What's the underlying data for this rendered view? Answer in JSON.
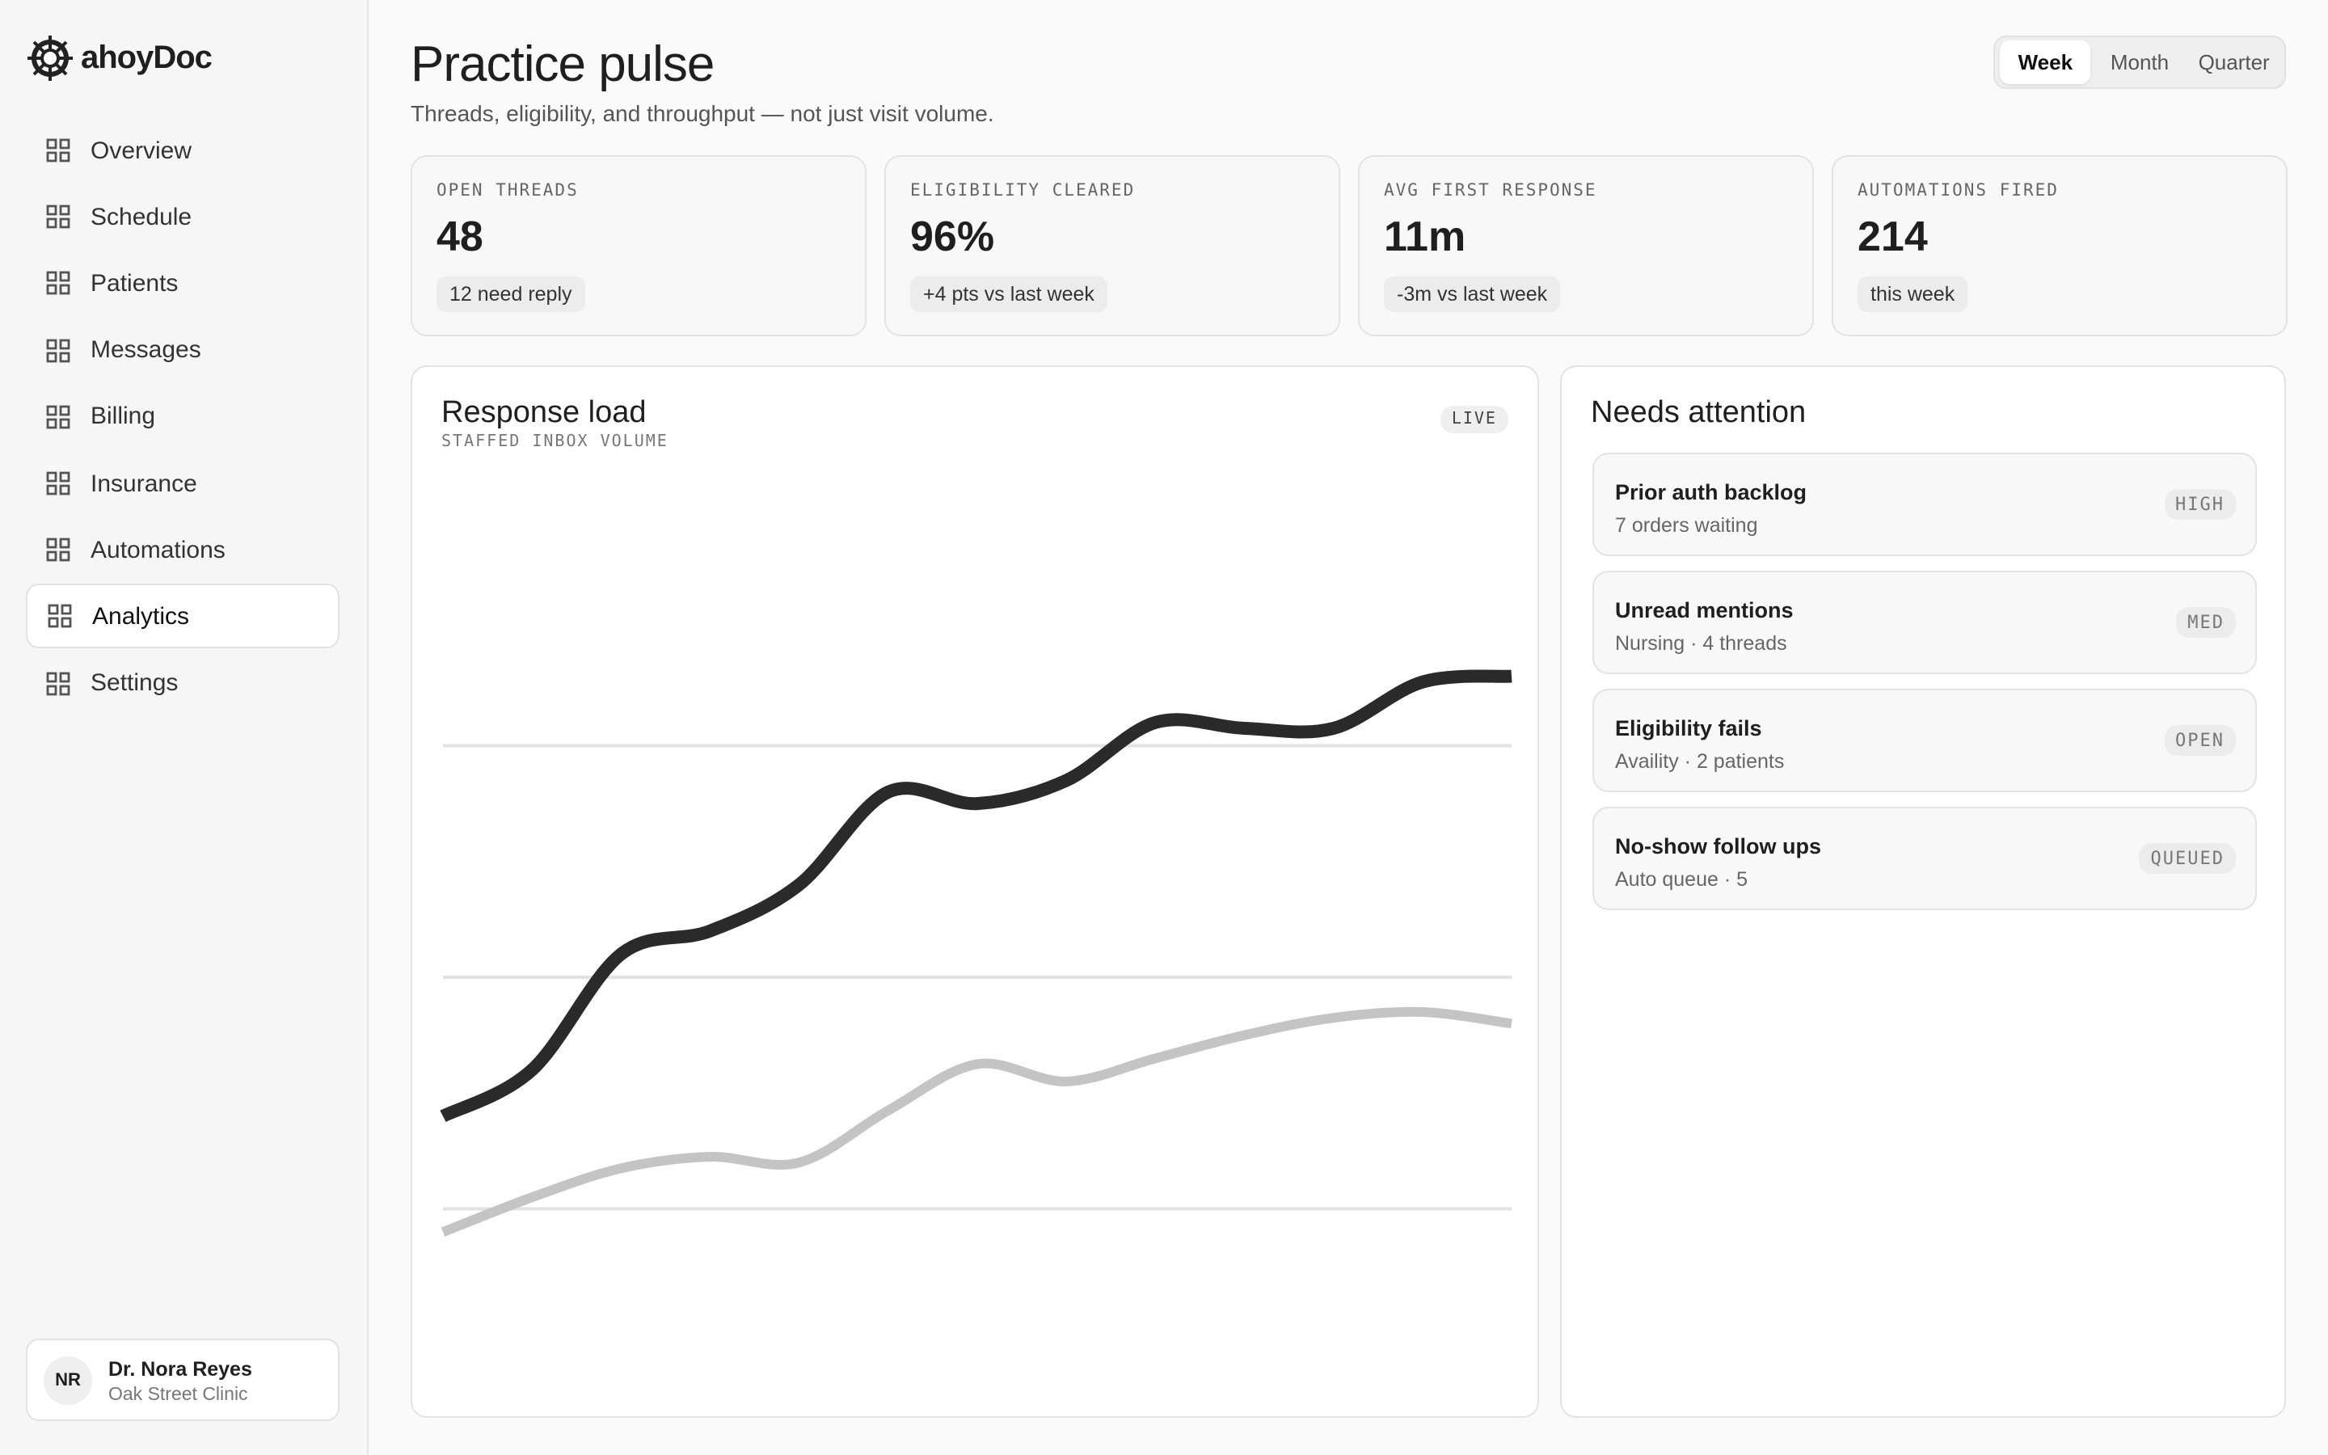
{
  "sidebar": {
    "brand": "ahoyDoc",
    "nav": [
      "Overview",
      "Schedule",
      "Patients",
      "Messages",
      "Billing",
      "Insurance",
      "Automations",
      "Analytics",
      "Settings"
    ],
    "active": 7,
    "user": {
      "initials": "NR",
      "name": "Dr. Nora Reyes",
      "org": "Oak Street Clinic"
    }
  },
  "header": {
    "title": "Practice pulse",
    "subtitle": "Threads, eligibility, and throughput — not just visit volume.",
    "ranges": [
      "Week",
      "Month",
      "Quarter"
    ],
    "active_range": 0
  },
  "kpis": [
    {
      "label": "OPEN THREADS",
      "value": "48",
      "note": "12 need reply"
    },
    {
      "label": "ELIGIBILITY CLEARED",
      "value": "96%",
      "note": "+4 pts vs last week"
    },
    {
      "label": "AVG FIRST RESPONSE",
      "value": "11m",
      "note": "-3m vs last week"
    },
    {
      "label": "AUTOMATIONS FIRED",
      "value": "214",
      "note": "this week"
    }
  ],
  "chart_data": {
    "type": "line",
    "title": "Response load",
    "subtitle": "STAFFED INBOX VOLUME",
    "badge": "LIVE",
    "x": [
      0,
      1,
      2,
      3,
      4,
      5,
      6,
      7,
      8,
      9,
      10,
      11,
      12
    ],
    "xlim": [
      0,
      12
    ],
    "ylim": [
      0,
      80
    ],
    "yticks": [
      20,
      40,
      60
    ],
    "grid": true,
    "series": [
      {
        "color": "#2a2a2a",
        "values": [
          28,
          32,
          42,
          44,
          48,
          56,
          55,
          57,
          62,
          61.5,
          61.5,
          65.5,
          66
        ]
      },
      {
        "color": "#c4c4c4",
        "values": [
          18,
          21,
          23.5,
          24.5,
          24,
          28.5,
          32.5,
          31,
          33,
          35,
          36.5,
          37,
          36
        ]
      }
    ]
  },
  "attention": {
    "title": "Needs attention",
    "items": [
      {
        "title": "Prior auth backlog",
        "detail": "7 orders waiting",
        "tag": "HIGH"
      },
      {
        "title": "Unread mentions",
        "detail": "Nursing · 4 threads",
        "tag": "MED"
      },
      {
        "title": "Eligibility fails",
        "detail": "Availity · 2 patients",
        "tag": "OPEN"
      },
      {
        "title": "No-show follow ups",
        "detail": "Auto queue · 5",
        "tag": "QUEUED"
      }
    ]
  }
}
